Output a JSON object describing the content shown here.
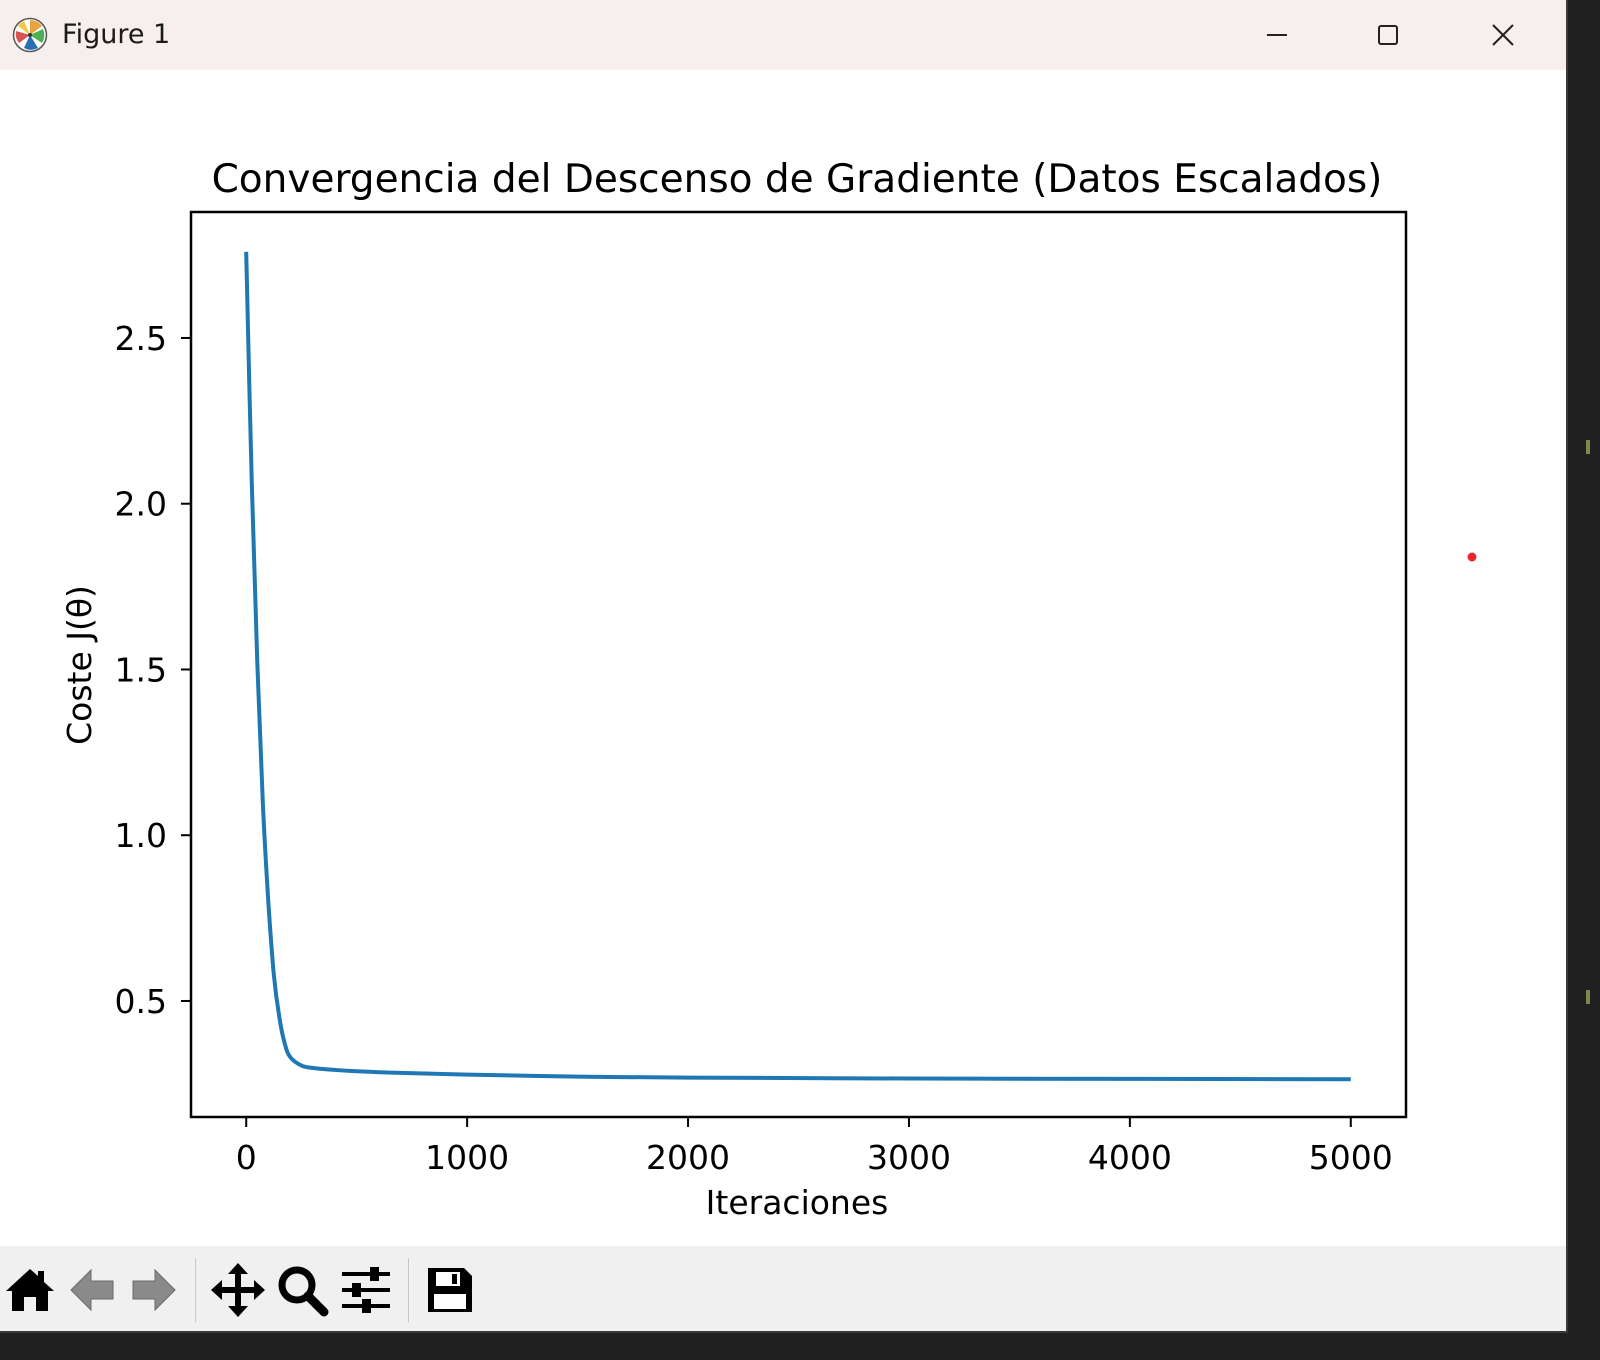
{
  "window": {
    "title": "Figure 1",
    "controls": {
      "minimize": "minimize",
      "maximize": "maximize",
      "close": "close"
    }
  },
  "toolbar": {
    "buttons": [
      {
        "name": "home",
        "icon": "home-icon"
      },
      {
        "name": "back",
        "icon": "arrow-left-icon"
      },
      {
        "name": "forward",
        "icon": "arrow-right-icon"
      },
      {
        "name": "pan",
        "icon": "move-icon"
      },
      {
        "name": "zoom",
        "icon": "magnifier-icon"
      },
      {
        "name": "configure-subplots",
        "icon": "sliders-icon"
      },
      {
        "name": "save",
        "icon": "floppy-disk-icon"
      }
    ]
  },
  "colors": {
    "line": "#1f77b4",
    "marker": "#e8282a",
    "titlebar": "#f7efed",
    "toolbar": "#f0f0f0"
  },
  "chart_data": {
    "type": "line",
    "title": "Convergencia del Descenso de Gradiente (Datos Escalados)",
    "xlabel": "Iteraciones",
    "ylabel": "Coste J(θ)",
    "xlim": [
      -250,
      5250
    ],
    "ylim": [
      0.15,
      2.88
    ],
    "xticks": [
      0,
      1000,
      2000,
      3000,
      4000,
      5000
    ],
    "xtick_labels": [
      "0",
      "1000",
      "2000",
      "3000",
      "4000",
      "5000"
    ],
    "yticks": [
      0.5,
      1.0,
      1.5,
      2.0,
      2.5
    ],
    "ytick_labels": [
      "0.5",
      "1.0",
      "1.5",
      "2.0",
      "2.5"
    ],
    "grid": false,
    "series": [
      {
        "x": [
          0,
          25,
          50,
          75,
          100,
          125,
          150,
          175,
          200,
          250,
          300,
          400,
          500,
          700,
          1000,
          1500,
          2000,
          3000,
          4000,
          5000
        ],
        "y": [
          2.76,
          2.06,
          1.52,
          1.1,
          0.8,
          0.58,
          0.45,
          0.37,
          0.33,
          0.305,
          0.298,
          0.292,
          0.288,
          0.283,
          0.278,
          0.272,
          0.269,
          0.266,
          0.265,
          0.264
        ]
      }
    ]
  }
}
